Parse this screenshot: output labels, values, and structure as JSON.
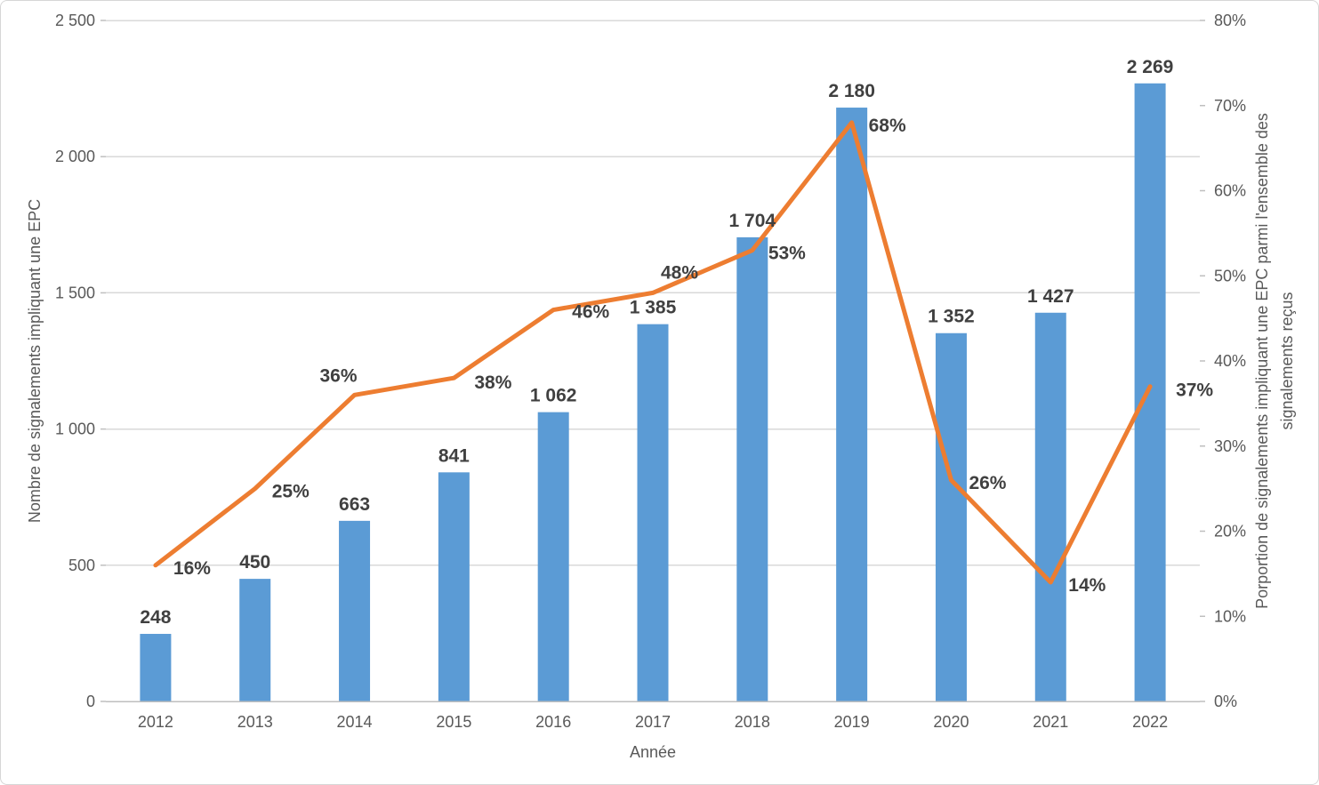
{
  "chart_data": {
    "type": "combo-bar-line",
    "categories": [
      "2012",
      "2013",
      "2014",
      "2015",
      "2016",
      "2017",
      "2018",
      "2019",
      "2020",
      "2021",
      "2022"
    ],
    "series": [
      {
        "name": "Nombre de signalements impliquant une EPC",
        "type": "bar",
        "axis": "left",
        "values": [
          248,
          450,
          663,
          841,
          1062,
          1385,
          1704,
          2180,
          1352,
          1427,
          2269
        ],
        "labels": [
          "248",
          "450",
          "663",
          "841",
          "1 062",
          "1 385",
          "1 704",
          "2 180",
          "1 352",
          "1 427",
          "2 269"
        ]
      },
      {
        "name": "Porportion de signalements impliquant une EPC parmi l'ensemble des signalements reçus",
        "type": "line",
        "axis": "right",
        "values": [
          16,
          25,
          36,
          38,
          46,
          48,
          53,
          68,
          26,
          14,
          37
        ],
        "labels": [
          "16%",
          "25%",
          "36%",
          "38%",
          "46%",
          "48%",
          "53%",
          "68%",
          "26%",
          "14%",
          "37%"
        ]
      }
    ],
    "x_axis": {
      "title": "Année"
    },
    "left_axis": {
      "title": "Nombre de signalements impliquant une EPC",
      "min": 0,
      "max": 2500,
      "step": 500,
      "tick_labels": [
        "0",
        "500",
        "1 000",
        "1 500",
        "2 000",
        "2 500"
      ]
    },
    "right_axis": {
      "title_line1": "Porportion de signalements impliquant une EPC parmi l'ensemble des",
      "title_line2": "signalements reçus",
      "min": 0,
      "max": 80,
      "step": 10,
      "tick_labels": [
        "0%",
        "10%",
        "20%",
        "30%",
        "40%",
        "50%",
        "60%",
        "70%",
        "80%"
      ]
    },
    "grid": "horizontal-only",
    "legend": "none",
    "colors": {
      "bar": "#5B9BD5",
      "line": "#ED7D31",
      "gridline": "#D9D9D9",
      "axis_line": "#BFBFBF",
      "tick_text": "#595959",
      "data_label": "#404040",
      "background": "#FFFFFF",
      "border": "#D6D6D6"
    }
  }
}
